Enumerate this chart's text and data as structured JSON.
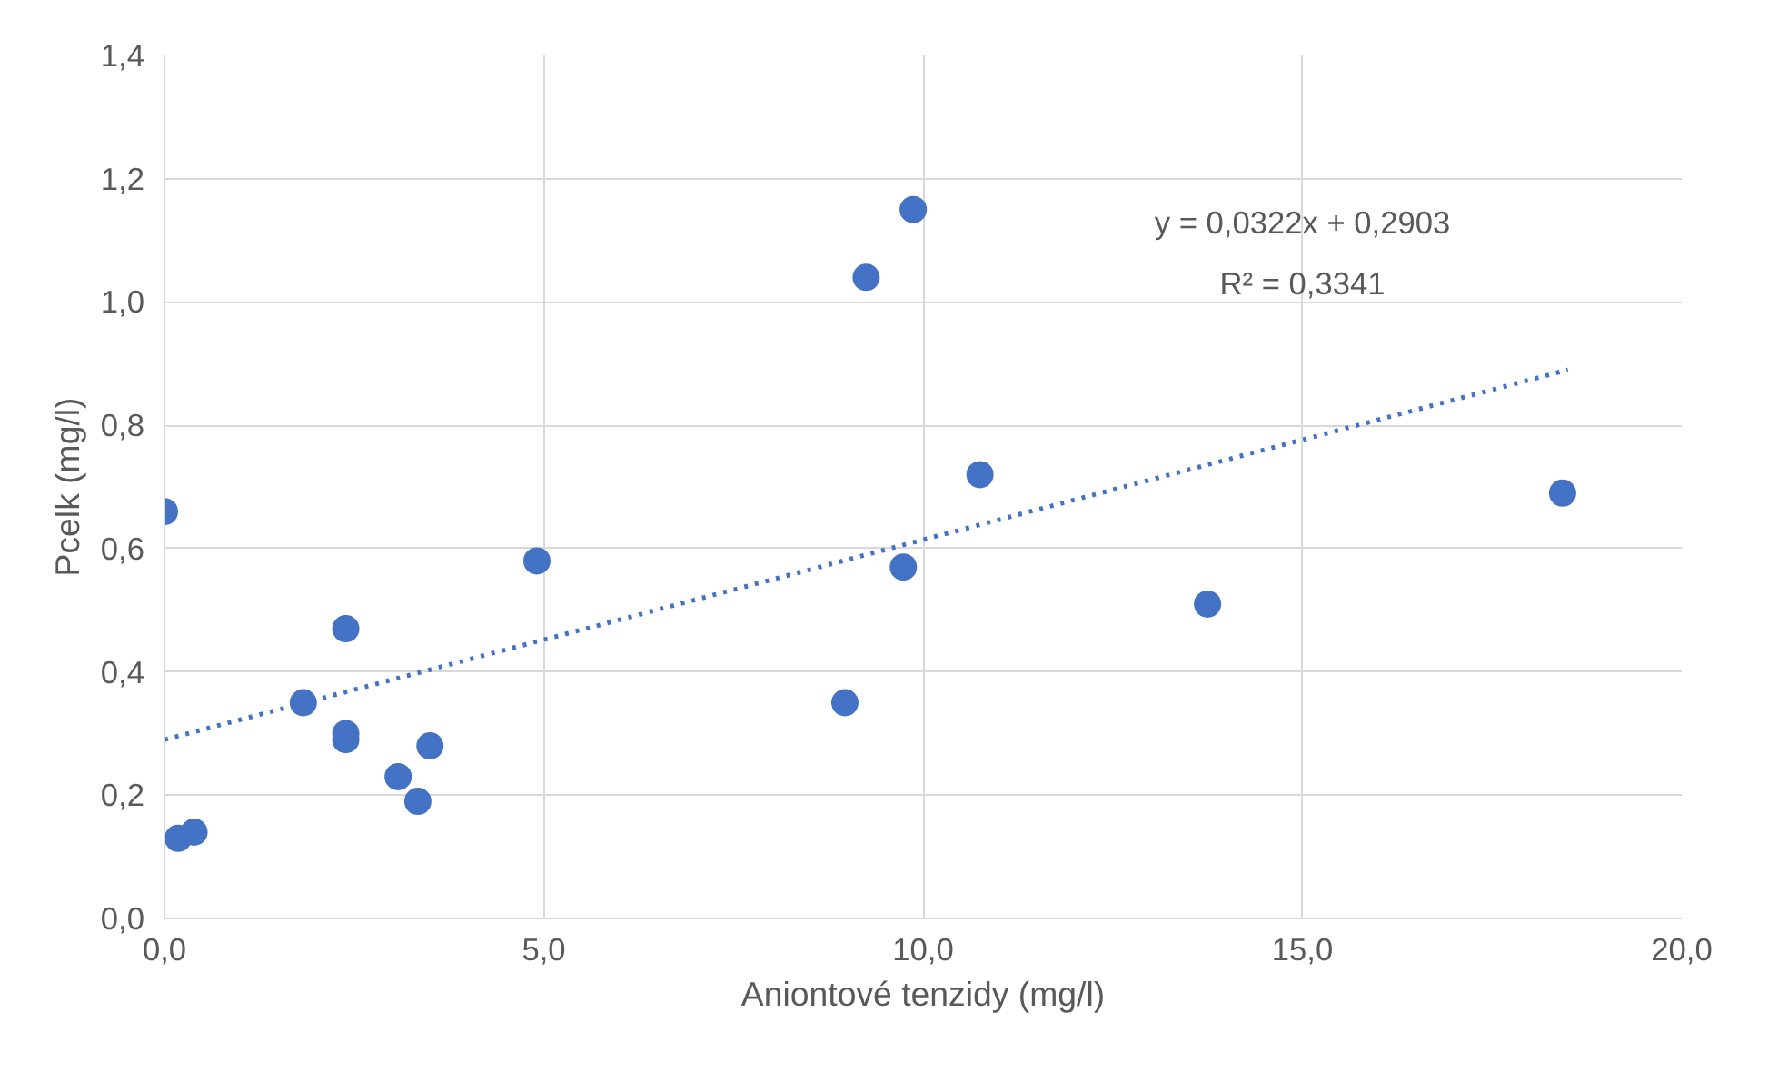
{
  "chart_data": {
    "type": "scatter",
    "xlabel": "Aniontové tenzidy (mg/l)",
    "ylabel": "Pcelk (mg/l)",
    "annotations": [
      "y = 0,0322x + 0,2903",
      "R² = 0,3341"
    ],
    "series": [
      {
        "color": "#4472c4",
        "marker": "circle",
        "x": [
          0.0,
          0.18,
          0.39,
          1.83,
          2.39,
          2.39,
          2.39,
          3.08,
          3.34,
          3.5,
          4.91,
          8.97,
          9.25,
          9.74,
          9.87,
          10.75,
          13.75,
          18.43
        ],
        "values": [
          0.66,
          0.13,
          0.14,
          0.35,
          0.47,
          0.3,
          0.29,
          0.23,
          0.19,
          0.28,
          0.58,
          0.35,
          1.04,
          0.57,
          1.15,
          0.72,
          0.51,
          0.69
        ]
      },
      {
        "type": "line",
        "color": "#4472c4",
        "marker": "none",
        "line_style": "dotted",
        "x": [
          0.0,
          18.5
        ],
        "values": [
          0.29,
          0.89
        ]
      }
    ],
    "xlim": [
      0,
      20
    ],
    "ylim": [
      0,
      1.4
    ],
    "xticks": [
      {
        "value": 0,
        "label": "0,0"
      },
      {
        "value": 5,
        "label": "5,0"
      },
      {
        "value": 10,
        "label": "10,0"
      },
      {
        "value": 15,
        "label": "15,0"
      },
      {
        "value": 20,
        "label": "20,0"
      }
    ],
    "yticks": [
      {
        "value": 0,
        "label": "0,0"
      },
      {
        "value": 0.2,
        "label": "0,2"
      },
      {
        "value": 0.4,
        "label": "0,4"
      },
      {
        "value": 0.6,
        "label": "0,6"
      },
      {
        "value": 0.8,
        "label": "0,8"
      },
      {
        "value": 1.0,
        "label": "1,0"
      },
      {
        "value": 1.2,
        "label": "1,2"
      },
      {
        "value": 1.4,
        "label": "1,4"
      }
    ],
    "grid": true
  }
}
